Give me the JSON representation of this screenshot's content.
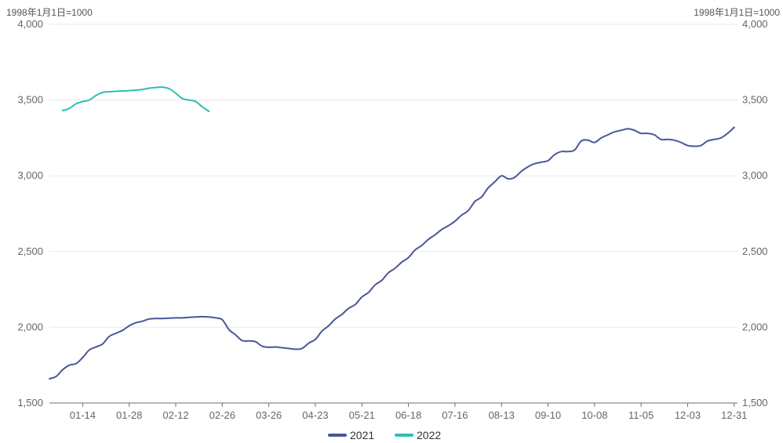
{
  "chart_data": {
    "type": "line",
    "unit_label_left": "1998年1月1日=1000",
    "unit_label_right": "1998年1月1日=1000",
    "y_ticks": [
      "1,500",
      "2,000",
      "2,500",
      "3,000",
      "3,500",
      "4,000"
    ],
    "y_tick_values": [
      1500,
      2000,
      2500,
      3000,
      3500,
      4000
    ],
    "ylim": [
      1500,
      4000
    ],
    "x_ticks": [
      "01-14",
      "01-28",
      "02-12",
      "02-26",
      "03-26",
      "04-23",
      "05-21",
      "06-18",
      "07-16",
      "08-13",
      "09-10",
      "10-08",
      "11-05",
      "12-03",
      "12-31"
    ],
    "x_tick_positions": [
      10,
      24,
      38,
      52,
      66,
      80,
      94,
      108,
      122,
      136,
      150,
      164,
      178,
      192,
      206
    ],
    "xlim": [
      0,
      207
    ],
    "grid": true,
    "legend_position": "bottom-center",
    "series": [
      {
        "name": "2021",
        "color": "#4a5796",
        "x": [
          0,
          2,
          4,
          6,
          8,
          10,
          12,
          14,
          16,
          18,
          20,
          22,
          24,
          26,
          28,
          30,
          32,
          34,
          36,
          38,
          40,
          42,
          44,
          46,
          48,
          50,
          52,
          54,
          56,
          58,
          60,
          62,
          64,
          66,
          68,
          70,
          72,
          74,
          76,
          78,
          80,
          82,
          84,
          86,
          88,
          90,
          92,
          94,
          96,
          98,
          100,
          102,
          104,
          106,
          108,
          110,
          112,
          114,
          116,
          118,
          120,
          122,
          124,
          126,
          128,
          130,
          132,
          134,
          136,
          138,
          140,
          142,
          144,
          146,
          148,
          150,
          152,
          154,
          156,
          158,
          160,
          162,
          164,
          166,
          168,
          170,
          172,
          174,
          176,
          178,
          180,
          182,
          184,
          186,
          188,
          190,
          192,
          194,
          196,
          198,
          200,
          202,
          204,
          206
        ],
        "values": [
          1660,
          1675,
          1720,
          1750,
          1760,
          1800,
          1850,
          1870,
          1890,
          1940,
          1960,
          1980,
          2010,
          2030,
          2040,
          2055,
          2058,
          2058,
          2060,
          2062,
          2062,
          2065,
          2068,
          2070,
          2068,
          2062,
          2050,
          1985,
          1950,
          1912,
          1910,
          1905,
          1875,
          1868,
          1870,
          1865,
          1860,
          1855,
          1860,
          1895,
          1920,
          1975,
          2010,
          2055,
          2085,
          2125,
          2150,
          2200,
          2230,
          2280,
          2310,
          2360,
          2390,
          2430,
          2460,
          2510,
          2540,
          2580,
          2610,
          2645,
          2670,
          2700,
          2740,
          2770,
          2830,
          2860,
          2920,
          2960,
          3000,
          2980,
          2990,
          3030,
          3060,
          3080,
          3090,
          3100,
          3140,
          3160,
          3160,
          3170,
          3230,
          3235,
          3220,
          3250,
          3270,
          3290,
          3300,
          3310,
          3300,
          3280,
          3280,
          3270,
          3240,
          3240,
          3235,
          3220,
          3200,
          3195,
          3200,
          3230,
          3240,
          3250,
          3280,
          3320
        ]
      },
      {
        "name": "2022",
        "color": "#2fbfb0",
        "x": [
          4,
          6,
          8,
          10,
          12,
          14,
          16,
          18,
          20,
          22,
          24,
          26,
          28,
          30,
          32,
          34,
          36,
          38,
          40,
          42,
          44,
          46,
          48
        ],
        "values": [
          3430,
          3445,
          3475,
          3490,
          3500,
          3530,
          3550,
          3555,
          3558,
          3560,
          3562,
          3565,
          3570,
          3578,
          3583,
          3585,
          3575,
          3545,
          3510,
          3500,
          3490,
          3455,
          3425
        ]
      }
    ]
  }
}
